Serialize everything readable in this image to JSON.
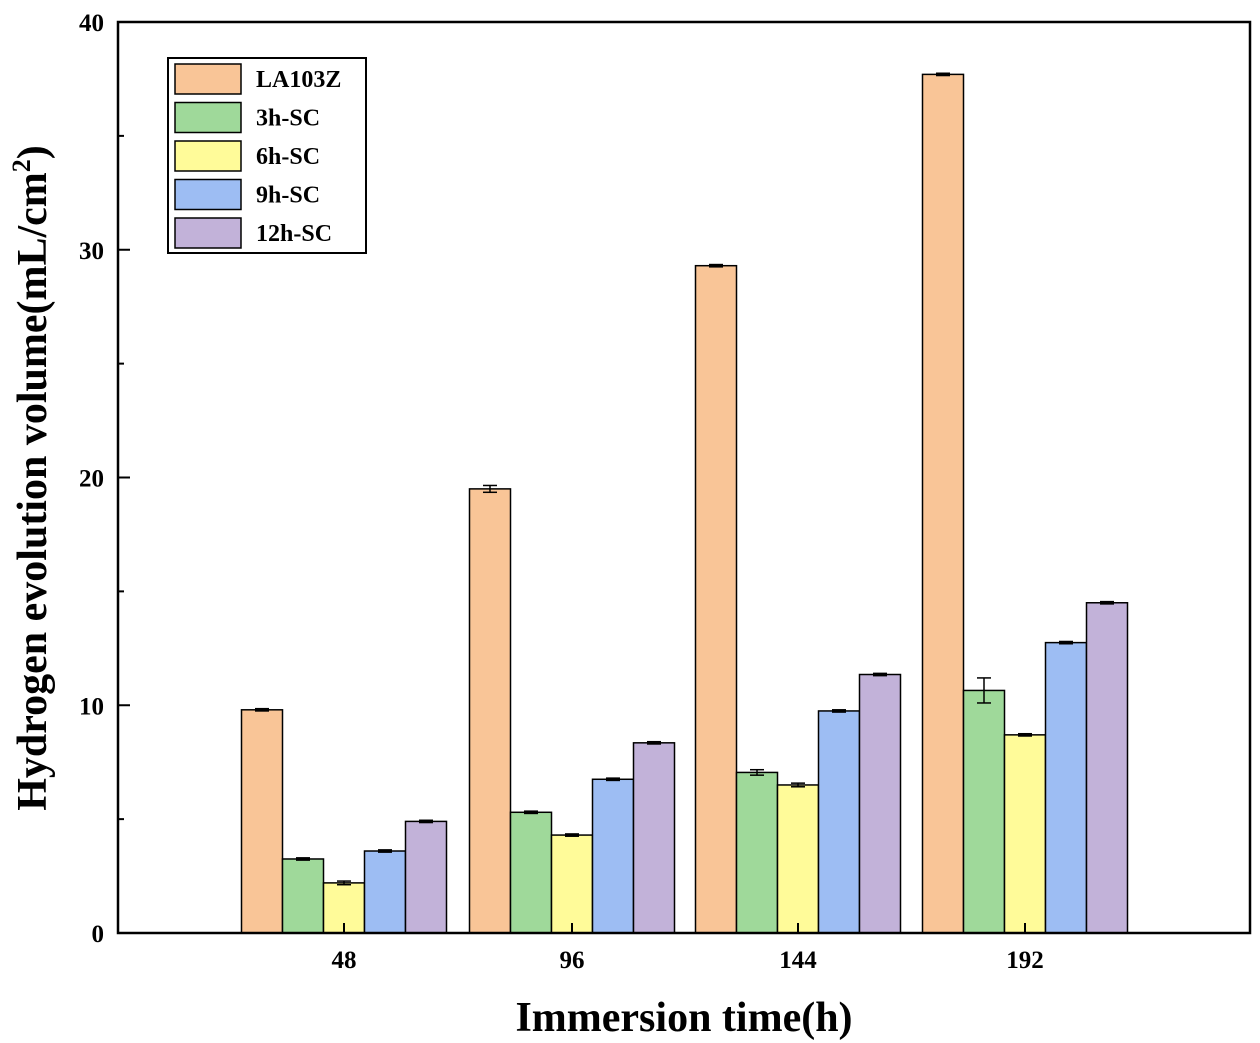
{
  "chart_data": {
    "type": "bar",
    "title": "",
    "xlabel": "Immersion time(h)",
    "ylabel": "Hydrogen evolution volume(mL/cm",
    "ylabel_superscript": "2",
    "ylabel_close": ")",
    "categories": [
      "48",
      "96",
      "144",
      "192"
    ],
    "ylim": [
      0,
      40
    ],
    "yticks": [
      "0",
      "10",
      "20",
      "30",
      "40"
    ],
    "grid": false,
    "legend_position": "top-left",
    "series": [
      {
        "name": "LA103Z",
        "color": "#F9C597",
        "values": [
          9.8,
          19.5,
          29.3,
          37.7
        ],
        "errors": [
          0.05,
          0.15,
          0.05,
          0.05
        ]
      },
      {
        "name": "3h-SC",
        "color": "#9FD99A",
        "values": [
          3.25,
          5.3,
          7.05,
          10.65
        ],
        "errors": [
          0.05,
          0.05,
          0.12,
          0.55
        ]
      },
      {
        "name": "6h-SC",
        "color": "#FFFB99",
        "values": [
          2.2,
          4.3,
          6.5,
          8.7
        ],
        "errors": [
          0.08,
          0.05,
          0.08,
          0.05
        ]
      },
      {
        "name": "9h-SC",
        "color": "#9DBDF3",
        "values": [
          3.6,
          6.75,
          9.75,
          12.75
        ],
        "errors": [
          0.05,
          0.05,
          0.05,
          0.05
        ]
      },
      {
        "name": "12h-SC",
        "color": "#C2B2D9",
        "values": [
          4.9,
          8.35,
          11.35,
          14.5
        ],
        "errors": [
          0.05,
          0.05,
          0.05,
          0.05
        ]
      }
    ]
  }
}
